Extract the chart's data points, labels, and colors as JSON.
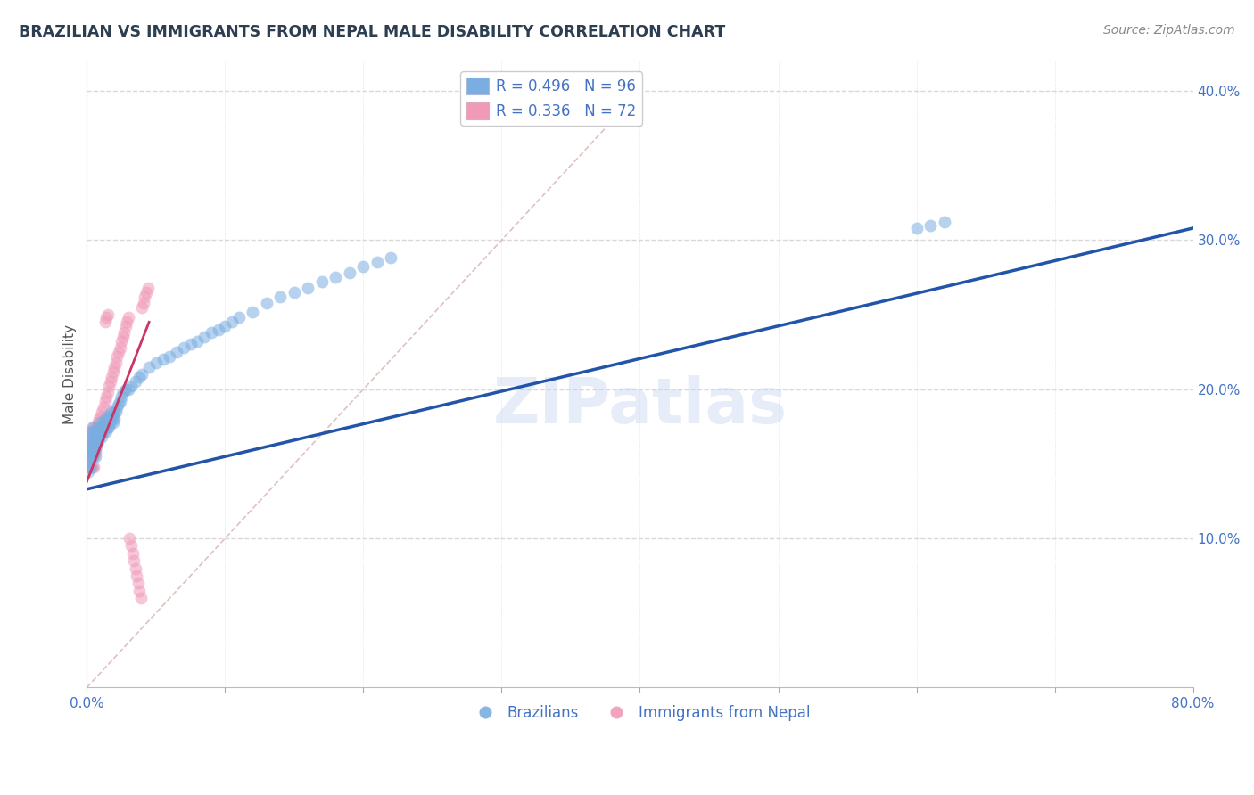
{
  "title": "BRAZILIAN VS IMMIGRANTS FROM NEPAL MALE DISABILITY CORRELATION CHART",
  "source": "Source: ZipAtlas.com",
  "ylabel": "Male Disability",
  "xlim": [
    0.0,
    0.8
  ],
  "ylim": [
    0.0,
    0.42
  ],
  "xtick_positions": [
    0.0,
    0.1,
    0.2,
    0.3,
    0.4,
    0.5,
    0.6,
    0.7,
    0.8
  ],
  "xticklabels": [
    "0.0%",
    "",
    "",
    "",
    "",
    "",
    "",
    "",
    "80.0%"
  ],
  "ytick_positions": [
    0.0,
    0.1,
    0.2,
    0.3,
    0.4
  ],
  "yticklabels": [
    "",
    "10.0%",
    "20.0%",
    "30.0%",
    "40.0%"
  ],
  "grid_color": "#d8d8d8",
  "background_color": "#ffffff",
  "title_color": "#2c3e50",
  "source_color": "#888888",
  "axis_tick_color": "#4472c4",
  "watermark_text": "ZIPatlas",
  "watermark_color": "#c8d8f0",
  "legend_R1": "R = 0.496",
  "legend_N1": "N = 96",
  "legend_R2": "R = 0.336",
  "legend_N2": "N = 72",
  "legend_text_color": "#4472c4",
  "legend_label1": "Brazilians",
  "legend_label2": "Immigrants from Nepal",
  "scatter_color1": "#7aaee0",
  "scatter_color2": "#f09ab8",
  "scatter_alpha": 0.55,
  "scatter_size": 100,
  "trend_color1": "#2255aa",
  "trend_color2": "#cc3366",
  "trend_lw1": 2.5,
  "trend_lw2": 2.0,
  "ref_line_color": "#e0c0c0",
  "blue_trend_x": [
    0.0,
    0.8
  ],
  "blue_trend_y": [
    0.133,
    0.308
  ],
  "pink_trend_x": [
    0.0,
    0.045
  ],
  "pink_trend_y": [
    0.138,
    0.245
  ],
  "ref_line_x": [
    0.0,
    0.4
  ],
  "ref_line_y": [
    0.0,
    0.4
  ],
  "brazilians_x": [
    0.001,
    0.001,
    0.001,
    0.002,
    0.002,
    0.002,
    0.002,
    0.003,
    0.003,
    0.003,
    0.003,
    0.003,
    0.004,
    0.004,
    0.004,
    0.004,
    0.005,
    0.005,
    0.005,
    0.005,
    0.006,
    0.006,
    0.006,
    0.006,
    0.007,
    0.007,
    0.007,
    0.008,
    0.008,
    0.008,
    0.009,
    0.009,
    0.01,
    0.01,
    0.01,
    0.011,
    0.011,
    0.012,
    0.012,
    0.013,
    0.013,
    0.014,
    0.014,
    0.015,
    0.015,
    0.015,
    0.016,
    0.016,
    0.017,
    0.017,
    0.018,
    0.018,
    0.019,
    0.019,
    0.02,
    0.02,
    0.021,
    0.022,
    0.023,
    0.024,
    0.025,
    0.026,
    0.028,
    0.03,
    0.032,
    0.035,
    0.038,
    0.04,
    0.045,
    0.05,
    0.055,
    0.06,
    0.065,
    0.07,
    0.075,
    0.08,
    0.085,
    0.09,
    0.095,
    0.1,
    0.105,
    0.11,
    0.12,
    0.13,
    0.14,
    0.15,
    0.16,
    0.17,
    0.18,
    0.19,
    0.2,
    0.21,
    0.22,
    0.6,
    0.61,
    0.62
  ],
  "brazilians_y": [
    0.152,
    0.158,
    0.145,
    0.16,
    0.155,
    0.148,
    0.165,
    0.162,
    0.158,
    0.155,
    0.17,
    0.148,
    0.165,
    0.16,
    0.155,
    0.172,
    0.168,
    0.162,
    0.158,
    0.175,
    0.17,
    0.165,
    0.16,
    0.155,
    0.172,
    0.168,
    0.162,
    0.175,
    0.17,
    0.165,
    0.172,
    0.168,
    0.178,
    0.175,
    0.17,
    0.175,
    0.168,
    0.178,
    0.172,
    0.18,
    0.175,
    0.178,
    0.172,
    0.182,
    0.178,
    0.175,
    0.18,
    0.175,
    0.182,
    0.178,
    0.185,
    0.18,
    0.182,
    0.178,
    0.185,
    0.18,
    0.185,
    0.188,
    0.19,
    0.192,
    0.195,
    0.198,
    0.2,
    0.2,
    0.202,
    0.205,
    0.208,
    0.21,
    0.215,
    0.218,
    0.22,
    0.222,
    0.225,
    0.228,
    0.23,
    0.232,
    0.235,
    0.238,
    0.24,
    0.242,
    0.245,
    0.248,
    0.252,
    0.258,
    0.262,
    0.265,
    0.268,
    0.272,
    0.275,
    0.278,
    0.282,
    0.285,
    0.288,
    0.308,
    0.31,
    0.312
  ],
  "nepal_x": [
    0.001,
    0.001,
    0.001,
    0.001,
    0.002,
    0.002,
    0.002,
    0.002,
    0.002,
    0.003,
    0.003,
    0.003,
    0.003,
    0.003,
    0.003,
    0.003,
    0.004,
    0.004,
    0.004,
    0.004,
    0.005,
    0.005,
    0.005,
    0.005,
    0.006,
    0.006,
    0.006,
    0.007,
    0.007,
    0.008,
    0.008,
    0.009,
    0.009,
    0.01,
    0.01,
    0.011,
    0.012,
    0.013,
    0.014,
    0.015,
    0.016,
    0.017,
    0.018,
    0.019,
    0.02,
    0.021,
    0.022,
    0.023,
    0.024,
    0.025,
    0.026,
    0.027,
    0.028,
    0.029,
    0.03,
    0.031,
    0.032,
    0.033,
    0.034,
    0.035,
    0.036,
    0.037,
    0.038,
    0.039,
    0.04,
    0.041,
    0.042,
    0.043,
    0.044,
    0.013,
    0.014,
    0.015
  ],
  "nepal_y": [
    0.155,
    0.148,
    0.162,
    0.17,
    0.158,
    0.155,
    0.148,
    0.165,
    0.172,
    0.162,
    0.155,
    0.148,
    0.17,
    0.165,
    0.158,
    0.172,
    0.162,
    0.155,
    0.148,
    0.175,
    0.168,
    0.162,
    0.155,
    0.148,
    0.172,
    0.165,
    0.158,
    0.175,
    0.168,
    0.178,
    0.17,
    0.18,
    0.172,
    0.182,
    0.175,
    0.185,
    0.188,
    0.192,
    0.195,
    0.198,
    0.202,
    0.205,
    0.208,
    0.212,
    0.215,
    0.218,
    0.222,
    0.225,
    0.228,
    0.232,
    0.235,
    0.238,
    0.242,
    0.245,
    0.248,
    0.1,
    0.095,
    0.09,
    0.085,
    0.08,
    0.075,
    0.07,
    0.065,
    0.06,
    0.255,
    0.258,
    0.262,
    0.265,
    0.268,
    0.245,
    0.248,
    0.25
  ]
}
